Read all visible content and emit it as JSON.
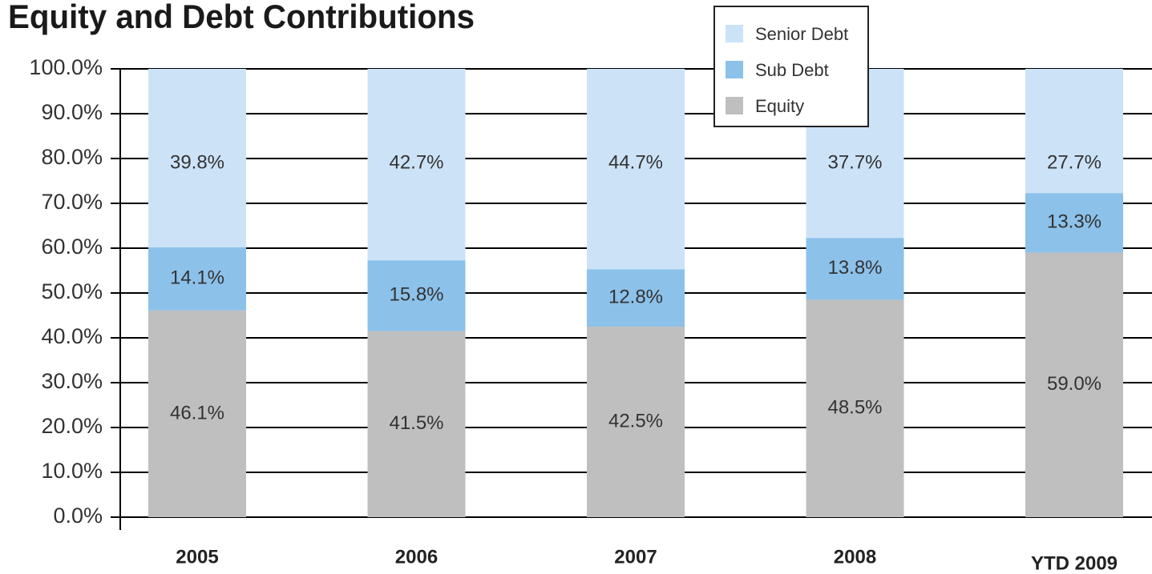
{
  "chart_data": {
    "type": "stacked_bar",
    "title": "Equity and Debt Contributions",
    "categories": [
      "2005",
      "2006",
      "2007",
      "2008",
      "YTD 2009"
    ],
    "series": [
      {
        "name": "Equity",
        "color": "#bfbfbf",
        "values": [
          46.1,
          41.5,
          42.5,
          48.5,
          59.0
        ],
        "value_labels": [
          "46.1%",
          "41.5%",
          "42.5%",
          "48.5%",
          "59.0%"
        ]
      },
      {
        "name": "Sub Debt",
        "color": "#8cc1ea",
        "values": [
          14.1,
          15.8,
          12.8,
          13.8,
          13.3
        ],
        "value_labels": [
          "14.1%",
          "15.8%",
          "12.8%",
          "13.8%",
          "13.3%"
        ]
      },
      {
        "name": "Senior Debt",
        "color": "#cce3f7",
        "values": [
          39.8,
          42.7,
          44.7,
          37.7,
          27.7
        ],
        "value_labels": [
          "39.8%",
          "42.7%",
          "44.7%",
          "37.7%",
          "27.7%"
        ]
      }
    ],
    "ylim": [
      0,
      100
    ],
    "yticks": [
      {
        "value": 0,
        "label": "0.0%"
      },
      {
        "value": 10,
        "label": "10.0%"
      },
      {
        "value": 20,
        "label": "20.0%"
      },
      {
        "value": 30,
        "label": "30.0%"
      },
      {
        "value": 40,
        "label": "40.0%"
      },
      {
        "value": 50,
        "label": "50.0%"
      },
      {
        "value": 60,
        "label": "60.0%"
      },
      {
        "value": 70,
        "label": "70.0%"
      },
      {
        "value": 80,
        "label": "80.0%"
      },
      {
        "value": 90,
        "label": "90.0%"
      },
      {
        "value": 100,
        "label": "100.0%"
      }
    ],
    "grid": true,
    "legend": "top-right"
  }
}
